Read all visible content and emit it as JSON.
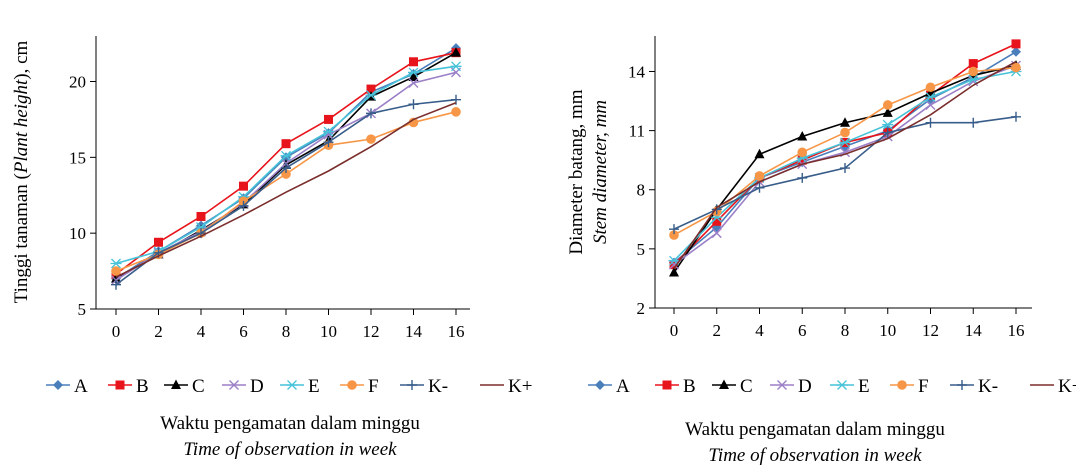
{
  "chart_data": [
    {
      "type": "line",
      "ylabel_parts": [
        "Tinggi tanaman (",
        "Plant height",
        "), cm"
      ],
      "xlabel": "Waktu pengamatan dalam minggu",
      "xlabel_en": "Time of observation in week",
      "x": [
        0,
        2,
        4,
        6,
        8,
        10,
        12,
        14,
        16
      ],
      "xticks": [
        "0",
        "2",
        "4",
        "6",
        "8",
        "10",
        "12",
        "14",
        "16"
      ],
      "ylim": [
        5,
        23
      ],
      "yticks": [
        "5",
        "10",
        "15",
        "20"
      ],
      "legend_position": "bottom",
      "series": [
        {
          "name": "A",
          "color": "#4a7ebb",
          "marker": "diamond",
          "values": [
            7.0,
            8.8,
            10.5,
            12.3,
            15.0,
            16.6,
            19.3,
            20.5,
            22.2
          ]
        },
        {
          "name": "B",
          "color": "#e8141b",
          "marker": "square",
          "values": [
            7.3,
            9.4,
            11.1,
            13.1,
            15.9,
            17.5,
            19.5,
            21.3,
            21.9
          ]
        },
        {
          "name": "C",
          "color": "#000000",
          "marker": "triangle",
          "values": [
            7.0,
            8.6,
            10.2,
            11.9,
            14.5,
            16.1,
            19.0,
            20.3,
            21.9
          ]
        },
        {
          "name": "D",
          "color": "#9b7fc7",
          "marker": "x",
          "values": [
            6.9,
            8.7,
            10.1,
            12.0,
            14.6,
            16.5,
            17.9,
            19.9,
            20.6
          ]
        },
        {
          "name": "E",
          "color": "#46c2d9",
          "marker": "star",
          "values": [
            8.0,
            8.8,
            10.4,
            12.4,
            15.1,
            16.7,
            19.1,
            20.6,
            21.0
          ]
        },
        {
          "name": "F",
          "color": "#f79646",
          "marker": "circle",
          "values": [
            7.5,
            8.6,
            10.0,
            12.1,
            13.9,
            15.8,
            16.2,
            17.3,
            18.0
          ]
        },
        {
          "name": "K-",
          "color": "#385d8a",
          "marker": "plus",
          "values": [
            6.6,
            8.7,
            10.0,
            11.8,
            14.3,
            16.0,
            17.9,
            18.5,
            18.8
          ]
        },
        {
          "name": "K+",
          "color": "#7a2e2c",
          "marker": "none",
          "values": [
            7.1,
            8.5,
            9.8,
            11.2,
            12.7,
            14.1,
            15.7,
            17.5,
            18.6
          ]
        }
      ]
    },
    {
      "type": "line",
      "ylabel": "Diameter batang, mm",
      "ylabel_en": "Stem diameter, mm",
      "xlabel": "Waktu pengamatan dalam minggu",
      "xlabel_en": "Time of observation in week",
      "x": [
        0,
        2,
        4,
        6,
        8,
        10,
        12,
        14,
        16
      ],
      "xticks": [
        "0",
        "2",
        "4",
        "6",
        "8",
        "10",
        "12",
        "14",
        "16"
      ],
      "ylim": [
        2,
        15.8
      ],
      "yticks": [
        "2",
        "5",
        "8",
        "11",
        "14"
      ],
      "legend_position": "bottom",
      "series": [
        {
          "name": "A",
          "color": "#4a7ebb",
          "marker": "diamond",
          "values": [
            4.3,
            6.1,
            8.6,
            9.4,
            10.2,
            11.0,
            12.6,
            13.7,
            15.0
          ]
        },
        {
          "name": "B",
          "color": "#e8141b",
          "marker": "square",
          "values": [
            4.2,
            6.4,
            8.6,
            9.5,
            10.4,
            10.9,
            12.8,
            14.4,
            15.4
          ]
        },
        {
          "name": "C",
          "color": "#000000",
          "marker": "triangle",
          "values": [
            3.8,
            7.0,
            9.8,
            10.7,
            11.4,
            11.9,
            12.9,
            13.8,
            14.3
          ]
        },
        {
          "name": "D",
          "color": "#9b7fc7",
          "marker": "x",
          "values": [
            4.2,
            5.8,
            8.4,
            9.3,
            9.9,
            10.7,
            12.3,
            13.5,
            14.3
          ]
        },
        {
          "name": "E",
          "color": "#46c2d9",
          "marker": "star",
          "values": [
            4.4,
            6.6,
            8.6,
            9.6,
            10.4,
            11.3,
            12.7,
            13.6,
            14.0
          ]
        },
        {
          "name": "F",
          "color": "#f79646",
          "marker": "circle",
          "values": [
            5.7,
            6.9,
            8.7,
            9.9,
            10.9,
            12.3,
            13.2,
            14.0,
            14.2
          ]
        },
        {
          "name": "K-",
          "color": "#385d8a",
          "marker": "plus",
          "values": [
            6.0,
            7.0,
            8.1,
            8.6,
            9.1,
            10.9,
            11.4,
            11.4,
            11.7
          ]
        },
        {
          "name": "K+",
          "color": "#7a2e2c",
          "marker": "none",
          "values": [
            4.0,
            7.1,
            8.4,
            9.3,
            9.8,
            10.6,
            11.8,
            13.3,
            14.5
          ]
        }
      ]
    }
  ]
}
